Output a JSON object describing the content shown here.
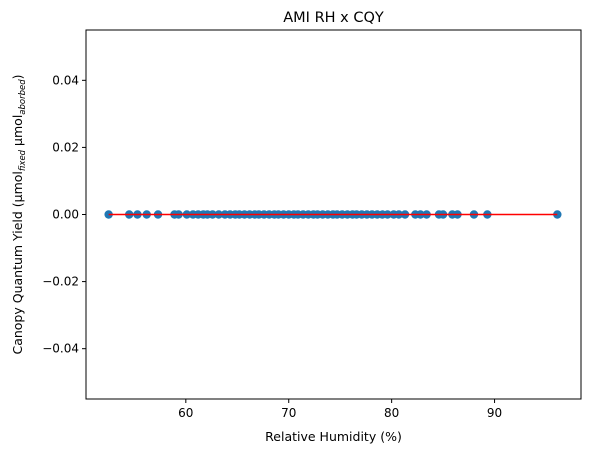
{
  "chart_data": {
    "type": "scatter",
    "title": "AMI RH x CQY",
    "xlabel": "Relative Humidity (%)",
    "ylabel": {
      "main": "Canopy Quantum Yield (µmol",
      "sub1": "fixed",
      "mid": " µmol",
      "sub2": "aborbed",
      "end": ")"
    },
    "xlim": [
      50.3,
      98.4
    ],
    "ylim": [
      -0.055,
      0.055
    ],
    "xticks": [
      60,
      70,
      80,
      90
    ],
    "yticks": [
      0.04,
      0.02,
      0.0,
      -0.02,
      -0.04
    ],
    "ytick_labels": [
      "0.04",
      "0.02",
      "0.00",
      "−0.02",
      "−0.04"
    ],
    "grid": false,
    "series": [
      {
        "marker_color": "#1f77b4",
        "x": [
          52.5,
          54.5,
          55.3,
          56.2,
          57.3,
          58.9,
          59.3,
          60.1,
          60.7,
          61.2,
          61.7,
          62.1,
          62.6,
          63.2,
          63.8,
          64.3,
          64.8,
          65.2,
          65.7,
          66.2,
          66.7,
          67.1,
          67.6,
          68.1,
          68.6,
          69.0,
          69.5,
          70.0,
          70.5,
          70.9,
          71.4,
          71.9,
          72.4,
          72.8,
          73.3,
          73.8,
          74.3,
          74.7,
          75.2,
          75.7,
          76.2,
          76.6,
          77.1,
          77.6,
          78.1,
          78.6,
          79.1,
          79.6,
          80.2,
          80.7,
          81.3,
          82.3,
          82.8,
          83.4,
          84.6,
          85.0,
          85.9,
          86.4,
          88.0,
          89.3,
          96.1
        ],
        "y": [
          0,
          0,
          0,
          0,
          0,
          0,
          0,
          0,
          0,
          0,
          0,
          0,
          0,
          0,
          0,
          0,
          0,
          0,
          0,
          0,
          0,
          0,
          0,
          0,
          0,
          0,
          0,
          0,
          0,
          0,
          0,
          0,
          0,
          0,
          0,
          0,
          0,
          0,
          0,
          0,
          0,
          0,
          0,
          0,
          0,
          0,
          0,
          0,
          0,
          0,
          0,
          0,
          0,
          0,
          0,
          0,
          0,
          0,
          0,
          0,
          0
        ]
      }
    ],
    "fit_line": {
      "color": "#ff0000",
      "x": [
        52.5,
        96.1
      ],
      "y": [
        0,
        0
      ]
    }
  }
}
